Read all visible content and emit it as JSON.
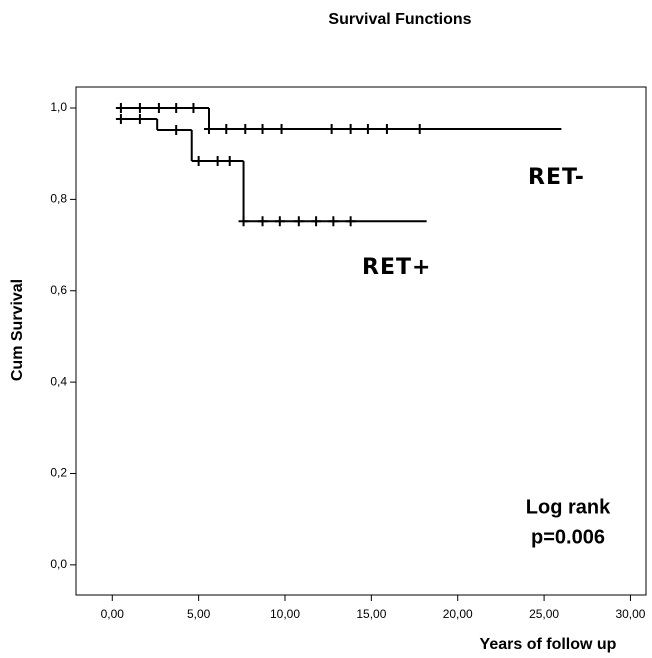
{
  "chart_data": {
    "type": "kaplan-meier",
    "title": "Survival Functions",
    "x_label": "Years of follow up",
    "y_label": "Cum Survival",
    "annotation": [
      "Log rank",
      "p=0.006"
    ],
    "xlim": [
      -2.1,
      30.9
    ],
    "ylim": [
      -0.066,
      1.046
    ],
    "xticks": [
      {
        "value": 0,
        "label": "0,00"
      },
      {
        "value": 5,
        "label": "5,00"
      },
      {
        "value": 10,
        "label": "10,00"
      },
      {
        "value": 15,
        "label": "15,00"
      },
      {
        "value": 20,
        "label": "20,00"
      },
      {
        "value": 25,
        "label": "25,00"
      },
      {
        "value": 30,
        "label": "30,00"
      }
    ],
    "yticks": [
      {
        "value": 0,
        "label": "0,0"
      },
      {
        "value": 0.2,
        "label": "0,2"
      },
      {
        "value": 0.4,
        "label": "0,4"
      },
      {
        "value": 0.6,
        "label": "0,6"
      },
      {
        "value": 0.8,
        "label": "0,8"
      },
      {
        "value": 1,
        "label": "1,0"
      }
    ],
    "series": [
      {
        "name": "RET-",
        "color": "#000000",
        "x": [
          0.5,
          5.6,
          26.0
        ],
        "values": [
          1.0,
          0.954,
          0.954
        ],
        "censored": {
          "x": [
            0.5,
            1.6,
            2.7,
            3.7,
            4.7,
            5.6,
            6.6,
            7.7,
            8.7,
            9.8,
            12.7,
            13.8,
            14.8,
            15.9,
            17.8
          ],
          "values": [
            1.0,
            1.0,
            1.0,
            1.0,
            1.0,
            0.954,
            0.954,
            0.954,
            0.954,
            0.954,
            0.954,
            0.954,
            0.954,
            0.954,
            0.954
          ]
        }
      },
      {
        "name": "RET+",
        "color": "#000000",
        "x": [
          0.5,
          2.6,
          4.6,
          7.6,
          18.2
        ],
        "values": [
          0.976,
          0.952,
          0.884,
          0.752,
          0.752
        ],
        "censored": {
          "x": [
            0.5,
            1.6,
            3.7,
            5.0,
            6.1,
            6.8,
            7.6,
            8.7,
            9.7,
            10.8,
            11.8,
            12.8,
            13.8
          ],
          "values": [
            0.976,
            0.976,
            0.952,
            0.884,
            0.884,
            0.884,
            0.752,
            0.752,
            0.752,
            0.752,
            0.752,
            0.752,
            0.752
          ]
        }
      }
    ]
  }
}
